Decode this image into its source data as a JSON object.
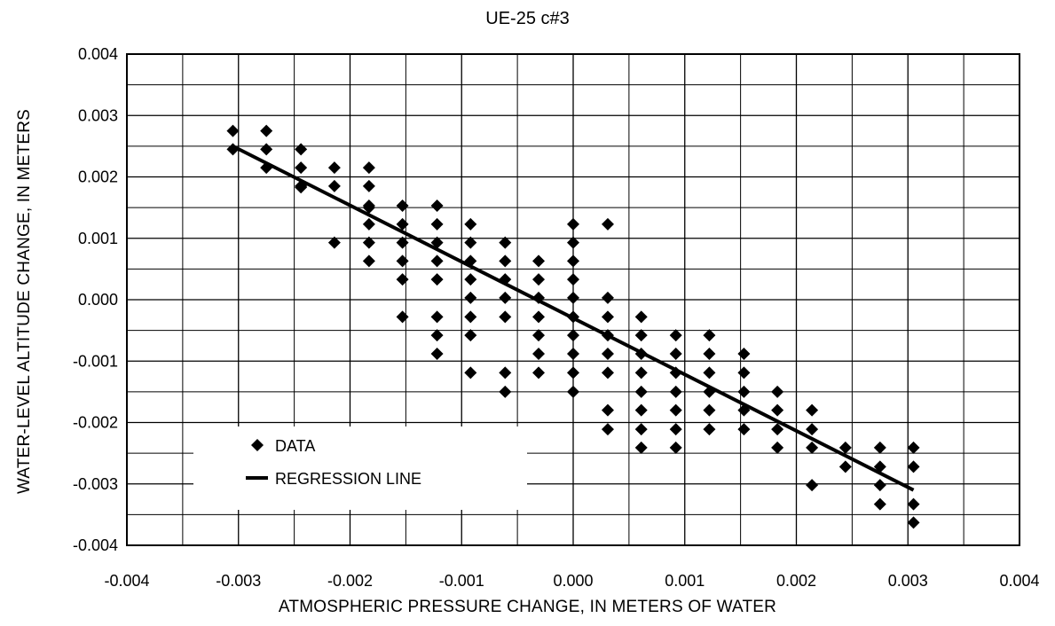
{
  "chart_data": {
    "type": "scatter",
    "title": "UE-25 c#3",
    "xlabel": "ATMOSPHERIC PRESSURE CHANGE, IN METERS OF WATER",
    "ylabel": "WATER-LEVEL ALTITUDE CHANGE, IN METERS",
    "xlim": [
      -0.004,
      0.004
    ],
    "ylim": [
      -0.004,
      0.004
    ],
    "x_ticks": [
      "-0.004",
      "-0.003",
      "-0.002",
      "-0.001",
      "0.000",
      "0.001",
      "0.002",
      "0.003",
      "0.004"
    ],
    "y_ticks": [
      "0.004",
      "0.003",
      "0.002",
      "0.001",
      "0.000",
      "-0.001",
      "-0.002",
      "-0.003",
      "-0.004"
    ],
    "grid": true,
    "legend_position": "bottom-left",
    "series": [
      {
        "name": "DATA",
        "marker": "diamond",
        "points": [
          [
            -0.00305,
            0.00275
          ],
          [
            -0.00305,
            0.00245
          ],
          [
            -0.00275,
            0.00275
          ],
          [
            -0.00275,
            0.00245
          ],
          [
            -0.00275,
            0.00215
          ],
          [
            -0.00244,
            0.00245
          ],
          [
            -0.00244,
            0.00215
          ],
          [
            -0.00244,
            0.00185
          ],
          [
            -0.00244,
            0.00183
          ],
          [
            -0.00214,
            0.00215
          ],
          [
            -0.00214,
            0.00185
          ],
          [
            -0.00214,
            0.00093
          ],
          [
            -0.00183,
            0.00215
          ],
          [
            -0.00183,
            0.00185
          ],
          [
            -0.00183,
            0.00153
          ],
          [
            -0.00183,
            0.0015
          ],
          [
            -0.00183,
            0.00123
          ],
          [
            -0.00183,
            0.00093
          ],
          [
            -0.00183,
            0.00063
          ],
          [
            -0.00153,
            0.00153
          ],
          [
            -0.00153,
            0.00123
          ],
          [
            -0.00153,
            0.00093
          ],
          [
            -0.00153,
            0.00063
          ],
          [
            -0.00153,
            0.00033
          ],
          [
            -0.00153,
            -0.00028
          ],
          [
            -0.00122,
            0.00153
          ],
          [
            -0.00122,
            0.00123
          ],
          [
            -0.00122,
            0.00093
          ],
          [
            -0.00122,
            0.00063
          ],
          [
            -0.00122,
            0.00033
          ],
          [
            -0.00122,
            -0.00028
          ],
          [
            -0.00122,
            -0.00058
          ],
          [
            -0.00122,
            -0.00088
          ],
          [
            -0.00092,
            0.00123
          ],
          [
            -0.00092,
            0.00093
          ],
          [
            -0.00092,
            0.00063
          ],
          [
            -0.00092,
            0.00033
          ],
          [
            -0.00092,
            3e-05
          ],
          [
            -0.00092,
            -0.00028
          ],
          [
            -0.00092,
            -0.00058
          ],
          [
            -0.00092,
            -0.00119
          ],
          [
            -0.00061,
            0.00093
          ],
          [
            -0.00061,
            0.00063
          ],
          [
            -0.00061,
            0.00033
          ],
          [
            -0.00061,
            3e-05
          ],
          [
            -0.00061,
            -0.00028
          ],
          [
            -0.00061,
            -0.00119
          ],
          [
            -0.00061,
            -0.0015
          ],
          [
            -0.00031,
            0.00063
          ],
          [
            -0.00031,
            0.00033
          ],
          [
            -0.00031,
            3e-05
          ],
          [
            -0.00031,
            -0.00028
          ],
          [
            -0.00031,
            -0.00058
          ],
          [
            -0.00031,
            -0.00088
          ],
          [
            -0.00031,
            -0.00119
          ],
          [
            0.0,
            0.00123
          ],
          [
            0.0,
            0.00093
          ],
          [
            0.0,
            0.00063
          ],
          [
            0.0,
            0.00033
          ],
          [
            0.0,
            3e-05
          ],
          [
            0.0,
            -0.00028
          ],
          [
            0.0,
            -0.00058
          ],
          [
            0.0,
            -0.00088
          ],
          [
            0.0,
            -0.00119
          ],
          [
            0.0,
            -0.0015
          ],
          [
            0.00031,
            0.00123
          ],
          [
            0.00031,
            3e-05
          ],
          [
            0.00031,
            -0.00028
          ],
          [
            0.00031,
            -0.00058
          ],
          [
            0.00031,
            -0.00088
          ],
          [
            0.00031,
            -0.00119
          ],
          [
            0.00031,
            -0.0018
          ],
          [
            0.00031,
            -0.00211
          ],
          [
            0.00061,
            -0.00028
          ],
          [
            0.00061,
            -0.00058
          ],
          [
            0.00061,
            -0.00088
          ],
          [
            0.00061,
            -0.00119
          ],
          [
            0.00061,
            -0.0015
          ],
          [
            0.00061,
            -0.0018
          ],
          [
            0.00061,
            -0.00211
          ],
          [
            0.00061,
            -0.00241
          ],
          [
            0.00092,
            -0.00058
          ],
          [
            0.00092,
            -0.00088
          ],
          [
            0.00092,
            -0.00119
          ],
          [
            0.00092,
            -0.0015
          ],
          [
            0.00092,
            -0.0018
          ],
          [
            0.00092,
            -0.00211
          ],
          [
            0.00092,
            -0.00241
          ],
          [
            0.00122,
            -0.00058
          ],
          [
            0.00122,
            -0.00088
          ],
          [
            0.00122,
            -0.00119
          ],
          [
            0.00122,
            -0.0015
          ],
          [
            0.00122,
            -0.0018
          ],
          [
            0.00122,
            -0.00211
          ],
          [
            0.00153,
            -0.00088
          ],
          [
            0.00153,
            -0.00119
          ],
          [
            0.00153,
            -0.0015
          ],
          [
            0.00153,
            -0.0018
          ],
          [
            0.00153,
            -0.00211
          ],
          [
            0.00183,
            -0.0015
          ],
          [
            0.00183,
            -0.0018
          ],
          [
            0.00183,
            -0.00211
          ],
          [
            0.00183,
            -0.00241
          ],
          [
            0.00214,
            -0.0018
          ],
          [
            0.00214,
            -0.00211
          ],
          [
            0.00214,
            -0.00241
          ],
          [
            0.00214,
            -0.00302
          ],
          [
            0.00244,
            -0.00241
          ],
          [
            0.00244,
            -0.00272
          ],
          [
            0.00275,
            -0.00241
          ],
          [
            0.00275,
            -0.00272
          ],
          [
            0.00275,
            -0.00302
          ],
          [
            0.00275,
            -0.00333
          ],
          [
            0.00305,
            -0.00241
          ],
          [
            0.00305,
            -0.00272
          ],
          [
            0.00305,
            -0.00333
          ],
          [
            0.00305,
            -0.00363
          ]
        ]
      },
      {
        "name": "REGRESSION LINE",
        "type": "line",
        "points": [
          [
            -0.00305,
            0.0025
          ],
          [
            0.00305,
            -0.0031
          ]
        ]
      }
    ]
  }
}
